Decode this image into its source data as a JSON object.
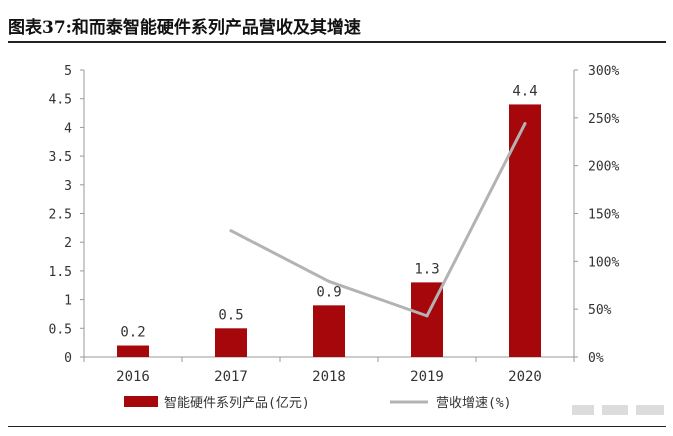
{
  "figure": {
    "title": "图表37:和而泰智能硬件系列产品营收及其增速"
  },
  "chart_data": {
    "type": "bar",
    "categories": [
      "2016",
      "2017",
      "2018",
      "2019",
      "2020"
    ],
    "series": [
      {
        "name": "智能硬件系列产品(亿元)",
        "type": "bar",
        "axis": "left",
        "values": [
          0.2,
          0.5,
          0.9,
          1.3,
          4.4
        ],
        "data_labels": [
          "0.2",
          "0.5",
          "0.9",
          "1.3",
          "4.4"
        ]
      },
      {
        "name": "营收增速(%)",
        "type": "line",
        "axis": "right",
        "values": [
          null,
          132,
          79,
          43,
          244
        ]
      }
    ],
    "y_left": {
      "min": 0,
      "max": 5,
      "step": 0.5,
      "tick_labels": [
        "0",
        "0.5",
        "1",
        "1.5",
        "2",
        "2.5",
        "3",
        "3.5",
        "4",
        "4.5",
        "5"
      ]
    },
    "y_right": {
      "min": 0,
      "max": 300,
      "step": 50,
      "tick_labels": [
        "0%",
        "50%",
        "100%",
        "150%",
        "200%",
        "250%",
        "300%"
      ]
    },
    "grid": false,
    "legend_position": "bottom",
    "colors": {
      "bar": "#a6070b",
      "line": "#b3b3b3",
      "axis": "#999999",
      "text": "#333333"
    }
  }
}
